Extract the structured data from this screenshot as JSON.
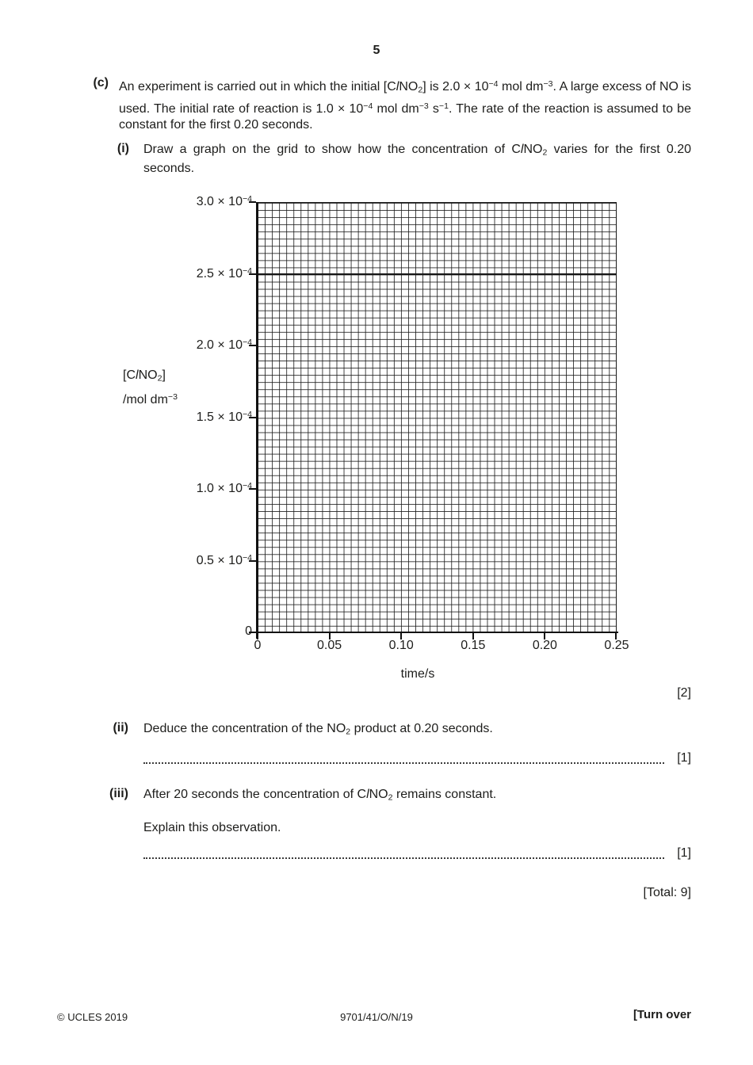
{
  "page": {
    "number": "5"
  },
  "question_c": {
    "label": "(c)",
    "intro_runs": [
      [
        "An experiment is carried out in which the initial [C"
      ],
      [
        "l",
        "i"
      ],
      [
        "NO"
      ],
      [
        "2",
        "sub"
      ],
      [
        "] is 2.0 × 10"
      ],
      [
        "−4",
        "sup"
      ],
      [
        " mol dm"
      ],
      [
        "−3",
        "sup"
      ],
      [
        ". A large excess of NO is used. The initial rate of reaction is 1.0 × 10"
      ],
      [
        "−4",
        "sup"
      ],
      [
        " mol dm"
      ],
      [
        "−3",
        "sup"
      ],
      [
        " s"
      ],
      [
        "−1",
        "sup"
      ],
      [
        ". The rate of the reaction is assumed to be constant for the first 0.20 seconds."
      ]
    ],
    "part_i": {
      "label": "(i)",
      "prompt_runs": [
        [
          "Draw a graph on the grid to show how the concentration of C"
        ],
        [
          "l",
          "i"
        ],
        [
          "NO"
        ],
        [
          "2",
          "sub"
        ],
        [
          " varies for the first 0.20 seconds."
        ]
      ],
      "marks": "[2]"
    },
    "part_ii": {
      "label": "(ii)",
      "prompt_runs": [
        [
          "Deduce the concentration of the NO"
        ],
        [
          "2",
          "sub"
        ],
        [
          " product at 0.20 seconds."
        ]
      ],
      "marks": "[1]"
    },
    "part_iii": {
      "label": "(iii)",
      "prompt_runs": [
        [
          "After 20 seconds the concentration of C"
        ],
        [
          "l",
          "i"
        ],
        [
          "NO"
        ],
        [
          "2",
          "sub"
        ],
        [
          " remains constant."
        ]
      ],
      "prompt2": "Explain this observation.",
      "marks": "[1]"
    },
    "total": "[Total: 9]"
  },
  "graph": {
    "ylabel_line1_runs": [
      [
        "[C"
      ],
      [
        "l",
        "i"
      ],
      [
        "NO"
      ],
      [
        "2",
        "sub"
      ],
      [
        "]"
      ]
    ],
    "ylabel_line2_runs": [
      [
        "/mol dm"
      ],
      [
        "−3",
        "sup"
      ]
    ],
    "ytick_runs": [
      [
        [
          "3.0 × 10"
        ],
        [
          "−4",
          "sup"
        ]
      ],
      [
        [
          "2.5 × 10"
        ],
        [
          "−4",
          "sup"
        ]
      ],
      [
        [
          "2.0 × 10"
        ],
        [
          "−4",
          "sup"
        ]
      ],
      [
        [
          "1.5 × 10"
        ],
        [
          "−4",
          "sup"
        ]
      ],
      [
        [
          "1.0 × 10"
        ],
        [
          "−4",
          "sup"
        ]
      ],
      [
        [
          "0.5 × 10"
        ],
        [
          "−4",
          "sup"
        ]
      ],
      [
        [
          "0"
        ]
      ]
    ]
  },
  "chart_data": {
    "type": "grid",
    "description": "Blank fine-square graph grid for the student to draw the concentration of ClNO2 against time; no data series plotted",
    "title": "",
    "xlabel": "time/s",
    "ylabel": "[ClNO2] / mol dm−3",
    "xtick_labels": [
      "0",
      "0.05",
      "0.10",
      "0.15",
      "0.20",
      "0.25"
    ],
    "ytick_labels": [
      "3.0 × 10⁻⁴",
      "2.5 × 10⁻⁴",
      "2.0 × 10⁻⁴",
      "1.5 × 10⁻⁴",
      "1.0 × 10⁻⁴",
      "0.5 × 10⁻⁴",
      "0"
    ],
    "xtick_values": [
      0,
      0.05,
      0.1,
      0.15,
      0.2,
      0.25
    ],
    "ytick_values": [
      0.0003,
      0.00025,
      0.0002,
      0.00015,
      0.0001,
      5e-05,
      0
    ],
    "xlim": [
      0,
      0.25
    ],
    "ylim": [
      0,
      0.0003
    ],
    "minor_squares_per_major_division": 10,
    "grid": "on",
    "legend": "none",
    "series": []
  },
  "footer": {
    "left": "© UCLES 2019",
    "center": "9701/41/O/N/19",
    "right": "[Turn over"
  }
}
